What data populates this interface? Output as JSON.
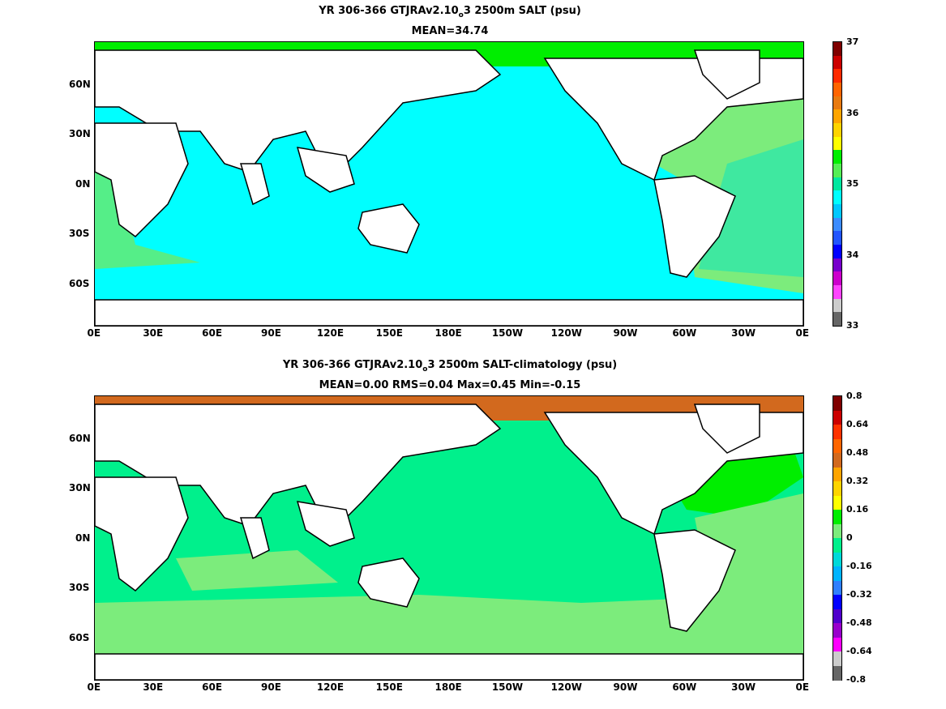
{
  "chart_data": [
    {
      "type": "heatmap",
      "title_prefix": "YR 306-366 GTJRAv2.10",
      "title_sub": "o",
      "title_suffix": "3 2500m SALT (psu)",
      "subtitle": "MEAN=34.74",
      "xticks": [
        "0E",
        "30E",
        "60E",
        "90E",
        "120E",
        "150E",
        "180E",
        "150W",
        "120W",
        "90W",
        "60W",
        "30W",
        "0E"
      ],
      "yticks": [
        "60N",
        "30N",
        "0N",
        "30S",
        "60S"
      ],
      "colorbar": {
        "range": [
          33,
          37
        ],
        "labels": [
          "37",
          "36",
          "35",
          "34",
          "33"
        ],
        "colors": [
          "#7f0000",
          "#cc0000",
          "#ff2a00",
          "#ff6400",
          "#e87a10",
          "#ffa500",
          "#ffd400",
          "#ffff00",
          "#00ee00",
          "#55ee55",
          "#00e7a0",
          "#00ffff",
          "#00c8ff",
          "#3c8cff",
          "#2255ff",
          "#0000ff",
          "#7700cc",
          "#cc00cc",
          "#ff44ff",
          "#cccccc",
          "#666666"
        ]
      },
      "colors": {
        "pacific_indian": "#00ffff",
        "atlantic": "#7cec7c",
        "atlantic_deep": "#3fe8a0",
        "arctic": "#00ee00",
        "land": "#ffffff"
      }
    },
    {
      "type": "heatmap",
      "title_prefix": "YR 306-366 GTJRAv2.10",
      "title_sub": "o",
      "title_suffix": "3 2500m SALT-climatology (psu)",
      "subtitle": "MEAN=0.00   RMS=0.04   Max=0.45   Min=-0.15",
      "xticks": [
        "0E",
        "30E",
        "60E",
        "90E",
        "120E",
        "150E",
        "180E",
        "150W",
        "120W",
        "90W",
        "60W",
        "30W",
        "0E"
      ],
      "yticks": [
        "60N",
        "30N",
        "0N",
        "30S",
        "60S"
      ],
      "colorbar": {
        "range": [
          -0.8,
          0.8
        ],
        "labels": [
          "0.8",
          "0.64",
          "0.48",
          "0.32",
          "0.16",
          "0",
          "-0.16",
          "-0.32",
          "-0.48",
          "-0.64",
          "-0.8"
        ],
        "colors": [
          "#7f0000",
          "#cc0000",
          "#ff3300",
          "#ff6600",
          "#d2691e",
          "#ffa500",
          "#ffd400",
          "#ffff00",
          "#00ee00",
          "#7cec7c",
          "#00f08c",
          "#00d9d9",
          "#00b4ff",
          "#2f7fff",
          "#0000ff",
          "#5000cc",
          "#9900cc",
          "#ff00ff",
          "#cccccc",
          "#666666"
        ]
      },
      "colors": {
        "background": "#00f08c",
        "southern": "#7cec7c",
        "arctic": "#d2691e",
        "north_atlantic": "#00ee00",
        "land": "#ffffff"
      }
    }
  ]
}
